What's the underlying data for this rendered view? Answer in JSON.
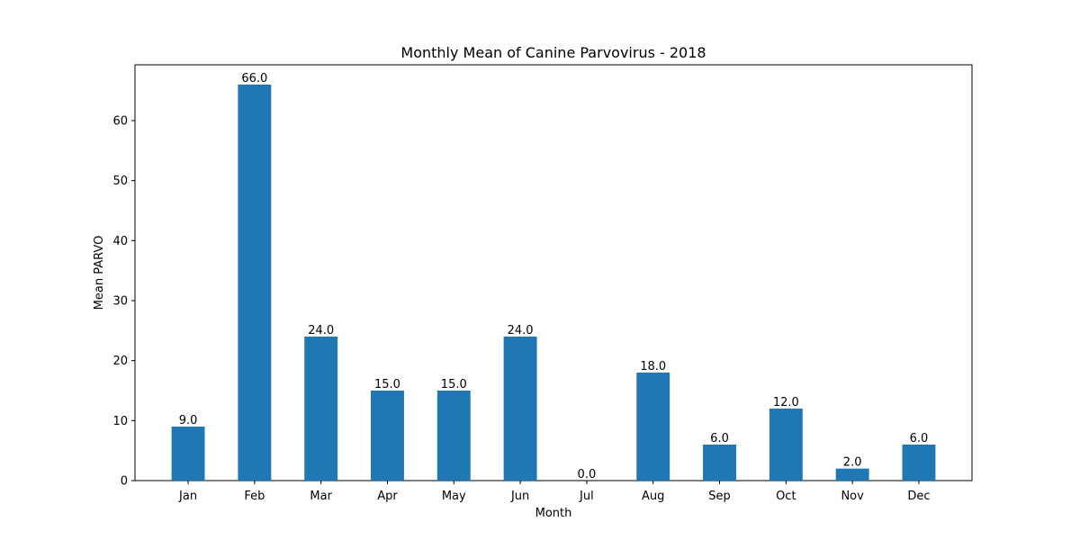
{
  "chart_data": {
    "type": "bar",
    "title": "Monthly Mean of Canine Parvovirus - 2018",
    "xlabel": "Month",
    "ylabel": "Mean PARVO",
    "categories": [
      "Jan",
      "Feb",
      "Mar",
      "Apr",
      "May",
      "Jun",
      "Jul",
      "Aug",
      "Sep",
      "Oct",
      "Nov",
      "Dec"
    ],
    "values": [
      9.0,
      66.0,
      24.0,
      15.0,
      15.0,
      24.0,
      0.0,
      18.0,
      6.0,
      12.0,
      2.0,
      6.0
    ],
    "data_labels": [
      "9.0",
      "66.0",
      "24.0",
      "15.0",
      "15.0",
      "24.0",
      "0.0",
      "18.0",
      "6.0",
      "12.0",
      "2.0",
      "6.0"
    ],
    "ylim": [
      0,
      69.3
    ],
    "yticks": [
      0,
      10,
      20,
      30,
      40,
      50,
      60
    ],
    "bar_color": "#1f77b4",
    "grid": false,
    "legend": "none"
  }
}
